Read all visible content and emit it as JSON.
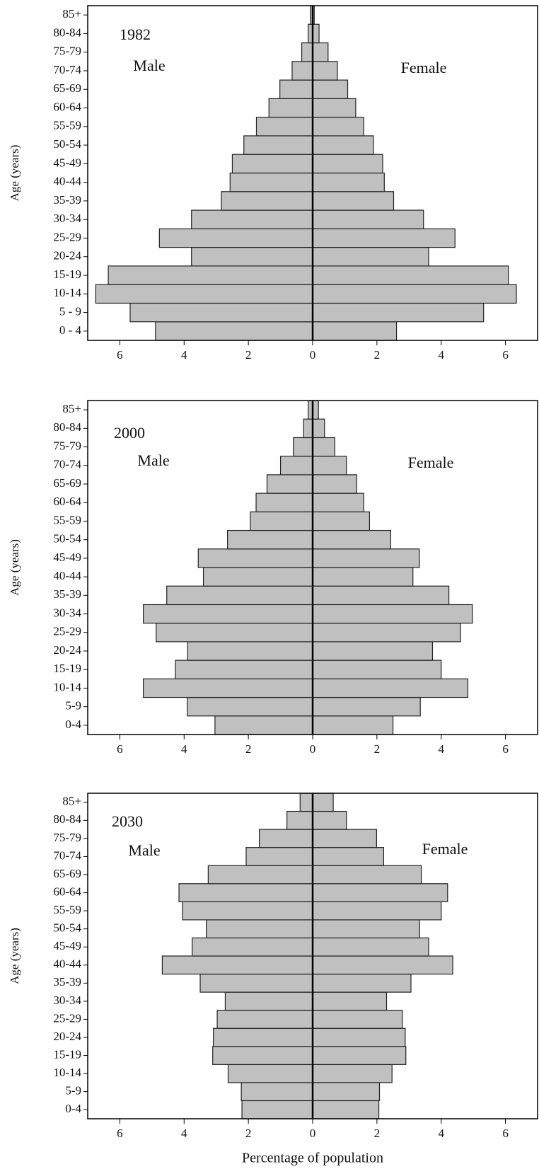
{
  "chart_data": [
    {
      "type": "pyramid",
      "title": "1982",
      "y_label": "Age (years)",
      "categories": [
        "0 - 4",
        "5 - 9",
        "10-14",
        "15-19",
        "20-24",
        "25-29",
        "30-34",
        "35-39",
        "40-44",
        "45-49",
        "50-54",
        "55-59",
        "60-64",
        "65-69",
        "70-74",
        "75-79",
        "80-84",
        "85+"
      ],
      "series": [
        {
          "name": "Male",
          "side": "left",
          "color": "#c0c0c0",
          "values": [
            4.89,
            5.68,
            6.75,
            6.36,
            3.77,
            4.77,
            3.77,
            2.84,
            2.57,
            2.5,
            2.14,
            1.75,
            1.36,
            1.02,
            0.64,
            0.34,
            0.14,
            0.07
          ]
        },
        {
          "name": "Female",
          "side": "right",
          "color": "#c0c0c0",
          "values": [
            2.61,
            5.32,
            6.34,
            6.09,
            3.61,
            4.43,
            3.45,
            2.52,
            2.23,
            2.18,
            1.89,
            1.59,
            1.34,
            1.09,
            0.77,
            0.48,
            0.2,
            0.05
          ]
        }
      ],
      "xlim": [
        -7,
        7
      ],
      "xticks": [
        {
          "value": -6,
          "label": "6"
        },
        {
          "value": -4,
          "label": "4"
        },
        {
          "value": -2,
          "label": "2"
        },
        0,
        2,
        4,
        6
      ]
    },
    {
      "type": "pyramid",
      "title": "2000",
      "y_label": "Age (years)",
      "categories": [
        "0-4",
        "5-9",
        "10-14",
        "15-19",
        "20-24",
        "25-29",
        "30-34",
        "35-39",
        "40-44",
        "45-49",
        "50-54",
        "55-59",
        "60-64",
        "65-69",
        "70-74",
        "75-79",
        "80-84",
        "85+"
      ],
      "series": [
        {
          "name": "Male",
          "side": "left",
          "color": "#c0c0c0",
          "values": [
            3.04,
            3.9,
            5.27,
            4.27,
            3.89,
            4.87,
            5.27,
            4.54,
            3.4,
            3.56,
            2.65,
            1.94,
            1.76,
            1.42,
            1.0,
            0.6,
            0.28,
            0.14
          ]
        },
        {
          "name": "Female",
          "side": "right",
          "color": "#c0c0c0",
          "values": [
            2.5,
            3.35,
            4.83,
            4.0,
            3.73,
            4.6,
            4.97,
            4.24,
            3.12,
            3.32,
            2.43,
            1.77,
            1.59,
            1.37,
            1.05,
            0.69,
            0.37,
            0.18
          ]
        }
      ],
      "xlim": [
        -7,
        7
      ],
      "xticks": [
        {
          "value": -6,
          "label": "6"
        },
        {
          "value": -4,
          "label": "4"
        },
        {
          "value": -2,
          "label": "2"
        },
        0,
        2,
        4,
        6
      ]
    },
    {
      "type": "pyramid",
      "title": "2030",
      "y_label": "Age (years)",
      "x_label": "Percentage of population",
      "categories": [
        "0-4",
        "5-9",
        "10-14",
        "15-19",
        "20-24",
        "25-29",
        "30-34",
        "35-39",
        "40-44",
        "45-49",
        "50-54",
        "55-59",
        "60-64",
        "65-69",
        "70-74",
        "75-79",
        "80-84",
        "85+"
      ],
      "series": [
        {
          "name": "Male",
          "side": "left",
          "color": "#c0c0c0",
          "values": [
            2.2,
            2.22,
            2.63,
            3.11,
            3.09,
            2.97,
            2.72,
            3.5,
            4.68,
            3.75,
            3.31,
            4.05,
            4.16,
            3.25,
            2.07,
            1.66,
            0.8,
            0.39
          ]
        },
        {
          "name": "Female",
          "side": "right",
          "color": "#c0c0c0",
          "values": [
            2.06,
            2.08,
            2.47,
            2.9,
            2.88,
            2.79,
            2.3,
            3.06,
            4.36,
            3.61,
            3.33,
            4.0,
            4.2,
            3.38,
            2.21,
            1.99,
            1.05,
            0.64
          ]
        }
      ],
      "xlim": [
        -7,
        7
      ],
      "xticks": [
        {
          "value": -6,
          "label": "6"
        },
        {
          "value": -4,
          "label": "4"
        },
        {
          "value": -2,
          "label": "2"
        },
        0,
        2,
        4,
        6
      ]
    }
  ]
}
